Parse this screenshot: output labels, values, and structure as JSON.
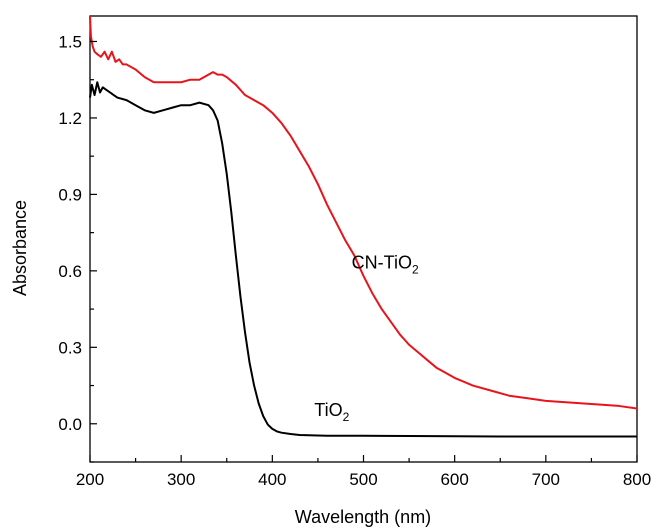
{
  "chart_data": {
    "type": "line",
    "title": "",
    "xlabel": "Wavelength (nm)",
    "ylabel": "Absorbance",
    "xlim": [
      200,
      800
    ],
    "ylim": [
      -0.15,
      1.6
    ],
    "xticks": [
      200,
      300,
      400,
      500,
      600,
      700,
      800
    ],
    "xtick_labels": [
      "200",
      "300",
      "400",
      "500",
      "600",
      "700",
      "800"
    ],
    "yticks": [
      0.0,
      0.3,
      0.6,
      0.9,
      1.2,
      1.5
    ],
    "ytick_labels": [
      "0.0",
      "0.3",
      "0.6",
      "0.9",
      "1.2",
      "1.5"
    ],
    "grid": false,
    "legend": "none",
    "annotations": [
      {
        "text": "CN-TiO",
        "subscript": "2",
        "x": 487,
        "y": 0.61,
        "series": "CN-TiO2"
      },
      {
        "text": "TiO",
        "subscript": "2",
        "x": 446,
        "y": 0.03,
        "series": "TiO2"
      }
    ],
    "series": [
      {
        "color": "#e8141c",
        "x": [
          200,
          201,
          203,
          205,
          208,
          212,
          216,
          220,
          224,
          228,
          232,
          236,
          240,
          250,
          260,
          270,
          280,
          290,
          300,
          310,
          320,
          330,
          335,
          340,
          345,
          350,
          360,
          370,
          380,
          390,
          400,
          410,
          420,
          430,
          440,
          450,
          460,
          470,
          480,
          490,
          500,
          510,
          520,
          530,
          540,
          550,
          560,
          570,
          580,
          590,
          600,
          620,
          640,
          660,
          680,
          700,
          720,
          740,
          760,
          780,
          800
        ],
        "y": [
          1.6,
          1.52,
          1.48,
          1.46,
          1.45,
          1.44,
          1.46,
          1.43,
          1.46,
          1.42,
          1.43,
          1.41,
          1.41,
          1.39,
          1.36,
          1.34,
          1.34,
          1.34,
          1.34,
          1.35,
          1.35,
          1.37,
          1.38,
          1.37,
          1.37,
          1.36,
          1.33,
          1.29,
          1.27,
          1.25,
          1.22,
          1.18,
          1.13,
          1.07,
          1.01,
          0.94,
          0.86,
          0.79,
          0.72,
          0.66,
          0.58,
          0.51,
          0.45,
          0.4,
          0.35,
          0.31,
          0.28,
          0.25,
          0.22,
          0.2,
          0.18,
          0.15,
          0.13,
          0.11,
          0.1,
          0.09,
          0.085,
          0.08,
          0.075,
          0.07,
          0.06
        ]
      },
      {
        "color": "#000000",
        "x": [
          200,
          202,
          205,
          208,
          211,
          214,
          218,
          222,
          226,
          230,
          240,
          250,
          260,
          270,
          280,
          290,
          300,
          310,
          320,
          330,
          335,
          340,
          345,
          350,
          355,
          360,
          365,
          370,
          375,
          380,
          385,
          390,
          395,
          400,
          405,
          410,
          420,
          430,
          440,
          450,
          460,
          480,
          500,
          550,
          600,
          650,
          700,
          750,
          800
        ],
        "y": [
          1.28,
          1.33,
          1.29,
          1.34,
          1.3,
          1.32,
          1.31,
          1.3,
          1.29,
          1.28,
          1.27,
          1.25,
          1.23,
          1.22,
          1.23,
          1.24,
          1.25,
          1.25,
          1.26,
          1.25,
          1.23,
          1.19,
          1.1,
          0.98,
          0.83,
          0.66,
          0.5,
          0.36,
          0.24,
          0.15,
          0.08,
          0.03,
          -0.003,
          -0.02,
          -0.03,
          -0.035,
          -0.04,
          -0.044,
          -0.045,
          -0.046,
          -0.047,
          -0.047,
          -0.047,
          -0.048,
          -0.049,
          -0.05,
          -0.05,
          -0.05,
          -0.05
        ]
      }
    ]
  }
}
